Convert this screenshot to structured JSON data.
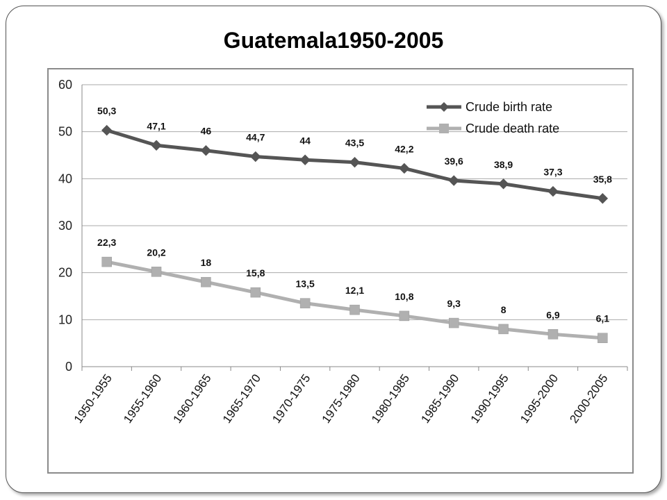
{
  "title": "Guatemala1950-2005",
  "chart_data": {
    "type": "line",
    "title": "Guatemala1950-2005",
    "xlabel": "",
    "ylabel": "",
    "categories": [
      "1950-1955",
      "1955-1960",
      "1960-1965",
      "1965-1970",
      "1970-1975",
      "1975-1980",
      "1980-1985",
      "1985-1990",
      "1990-1995",
      "1995-2000",
      "2000-2005"
    ],
    "ylim": [
      0,
      60
    ],
    "yticks": [
      "0",
      "10",
      "20",
      "30",
      "40",
      "50",
      "60"
    ],
    "grid": true,
    "legend_position": "top-right",
    "series": [
      {
        "name": "Crude birth rate",
        "color": "#555555",
        "marker": "diamond",
        "values": [
          50.3,
          47.1,
          46,
          44.7,
          44,
          43.5,
          42.2,
          39.6,
          38.9,
          37.3,
          35.8
        ],
        "labels": [
          "50,3",
          "47,1",
          "46",
          "44,7",
          "44",
          "43,5",
          "42,2",
          "39,6",
          "38,9",
          "37,3",
          "35,8"
        ]
      },
      {
        "name": "Crude death rate",
        "color": "#b0b0b0",
        "marker": "square",
        "values": [
          22.3,
          20.2,
          18,
          15.8,
          13.5,
          12.1,
          10.8,
          9.3,
          8,
          6.9,
          6.1
        ],
        "labels": [
          "22,3",
          "20,2",
          "18",
          "15,8",
          "13,5",
          "12,1",
          "10,8",
          "9,3",
          "8",
          "6,9",
          "6,1"
        ]
      }
    ]
  }
}
